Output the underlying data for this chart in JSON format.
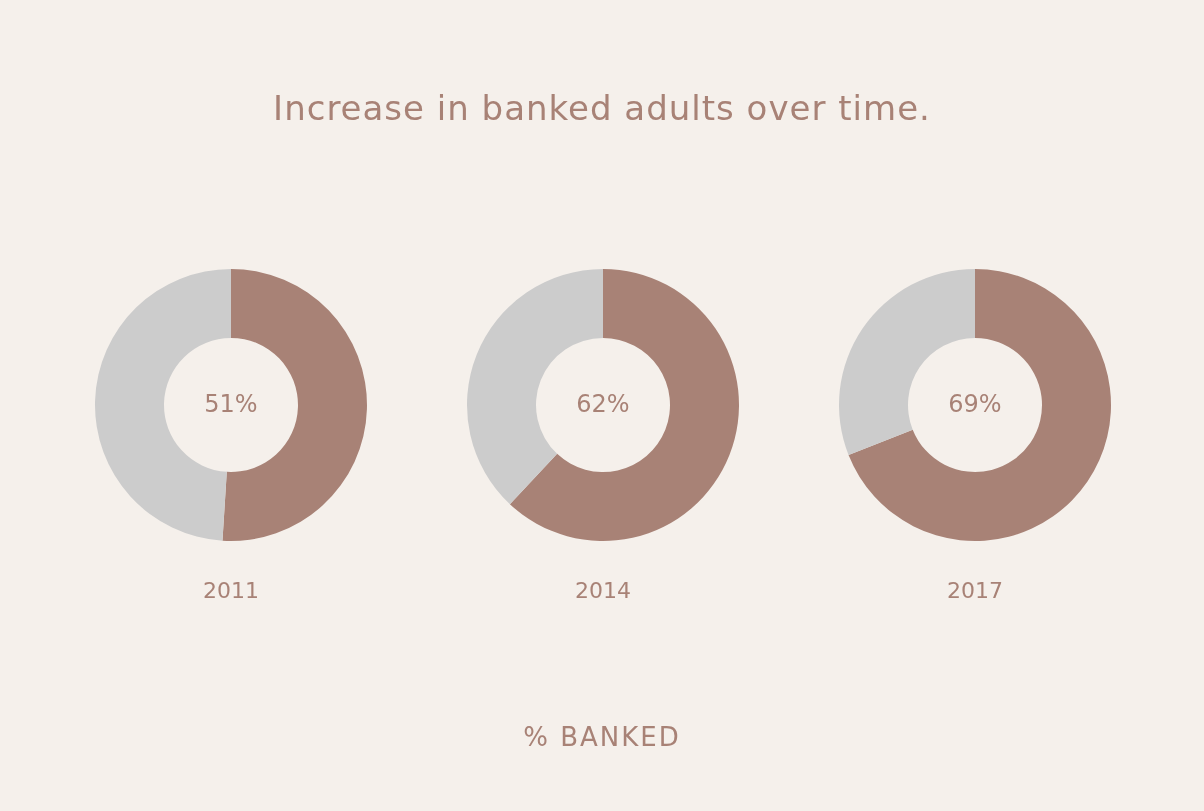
{
  "chart_data": [
    {
      "type": "donut",
      "title": "Increase in banked adults over time.",
      "categories": [
        null,
        null
      ],
      "values": [
        51,
        49
      ],
      "colors": [
        "#a88276",
        "#cccccc"
      ],
      "value_labels": [
        "51%",
        null
      ],
      "xlabel": "2011",
      "annotations": [
        "% BANKED"
      ]
    },
    {
      "type": "donut",
      "categories": [
        null,
        null
      ],
      "values": [
        62,
        38
      ],
      "colors": [
        "#a88276",
        "#cccccc"
      ],
      "value_labels": [
        "62%",
        null
      ],
      "xlabel": "2014"
    },
    {
      "type": "donut",
      "categories": [
        null,
        null
      ],
      "values": [
        69,
        31
      ],
      "colors": [
        "#a88276",
        "#cccccc"
      ],
      "value_labels": [
        "69%",
        null
      ],
      "xlabel": "2017"
    }
  ]
}
